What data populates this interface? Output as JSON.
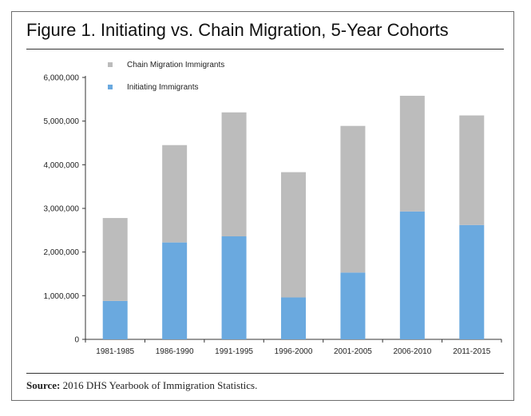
{
  "figure": {
    "title": "Figure 1. Initiating vs. Chain Migration, 5-Year Cohorts",
    "source_label": "Source:",
    "source_text": "2016 DHS Yearbook of Immigration Statistics."
  },
  "colors": {
    "initiating": "#6aa9df",
    "chain": "#bcbcbc",
    "axis": "#333333"
  },
  "chart_data": {
    "type": "bar",
    "stacked": true,
    "title": "Figure 1. Initiating vs. Chain Migration, 5-Year Cohorts",
    "xlabel": "",
    "ylabel": "",
    "ylim": [
      0,
      6000000
    ],
    "yticks": [
      0,
      1000000,
      2000000,
      3000000,
      4000000,
      5000000,
      6000000
    ],
    "ytick_labels": [
      "0",
      "1,000,000",
      "2,000,000",
      "3,000,000",
      "4,000,000",
      "5,000,000",
      "6,000,000"
    ],
    "categories": [
      "1981-1985",
      "1986-1990",
      "1991-1995",
      "1996-2000",
      "2001-2005",
      "2006-2010",
      "2011-2015"
    ],
    "series": [
      {
        "name": "Initiating Immigrants",
        "values": [
          880000,
          2220000,
          2360000,
          960000,
          1530000,
          2930000,
          2620000
        ]
      },
      {
        "name": "Chain Migration Immigrants",
        "values": [
          1900000,
          2230000,
          2840000,
          2870000,
          3360000,
          2650000,
          2510000
        ]
      }
    ],
    "legend": [
      "Chain Migration Immigrants",
      "Initiating Immigrants"
    ],
    "legend_position": "top-left",
    "grid": false
  }
}
